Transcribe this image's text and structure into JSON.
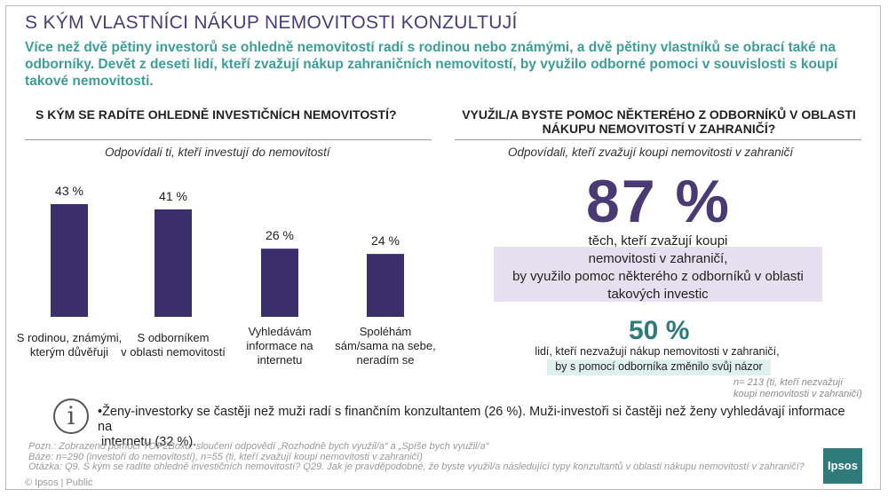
{
  "title": "S KÝM VLASTNÍCI NÁKUP NEMOVITOSTI KONZULTUJÍ",
  "intro": "Více než dvě pětiny investorů se ohledně nemovitostí radí s rodinou nebo známými, a dvě pětiny vlastníků se obrací také na odborníky. Devět z deseti lidí, kteří zvažují nákup zahraničních nemovitostí, by využilo odborné pomoci v souvislosti s koupí takové nemovitosti.",
  "left_title": "S KÝM SE RADÍTE OHLEDNĚ INVESTIČNÍCH NEMOVITOSTÍ?",
  "left_sub": "Odpovídali ti, kteří investují do nemovitostí",
  "right_title_1": "VYUŽIL/A BYSTE POMOC NĚKTERÉHO Z ODBORNÍKŮ V OBLASTI",
  "right_title_2": "NÁKUPU NEMOVITOSTÍ V ZAHRANIČÍ?",
  "right_sub": "Odpovídali, kteří zvažují koupi nemovitosti v zahraničí",
  "stat87": {
    "value": "87 %",
    "line1": "těch, kteří zvažují koupi",
    "line2": "nemovitosti v zahraničí,",
    "line3": "by využilo pomoc některého z odborníků v oblasti",
    "line4": "takových investic"
  },
  "stat50": {
    "value": "50 %",
    "line1": "lidí, kteří nezvažují nákup nemovitosti v zahraničí,",
    "line2": "by s pomocí odborníka změnilo svůj názor"
  },
  "n_right_1": "n= 213 (ti, kteří nezvažují",
  "n_right_2": "koupi nemovitosti v zahraničí)",
  "finding_1": "•Ženy-investorky se častěji než muži radí s finančním konzultantem (26 %). Muži-investoři si častěji než ženy vyhledávají informace na",
  "finding_2": "internetu (32 %).",
  "notes": [
    "Pozn.: Zobrazeno pomocí TOP2Boxu: sloučení odpovědí „Rozhodně bych využil/a“ a „Spíše bych využil/a“",
    "Báze: n=290 (investoři do nemovitostí), n=55 (ti, kteří zvažují koupi nemovitosti v zahraničí)",
    "Otázka: Q9. S kým se radíte ohledně investičních nemovitostí? Q29. Jak je pravděpodobné, že byste využil/a následující typy konzultantů v oblasti nákupu nemovitostí v zahraničí?"
  ],
  "footer": "© Ipsos | Public",
  "logo": "Ipsos",
  "colors": {
    "bar": "#3b2f6b",
    "title": "#4a3d78",
    "intro": "#3c9e98",
    "stat87": "#4a3a73",
    "stat50": "#2f7a7a"
  },
  "chart_data": {
    "type": "bar",
    "title": "S KÝM SE RADÍTE OHLEDNĚ INVESTIČNÍCH NEMOVITOSTÍ?",
    "categories": [
      [
        "S rodinou, známými,",
        "kterým důvěřuji"
      ],
      [
        "S odborníkem",
        "v oblasti nemovitostí"
      ],
      [
        "Vyhledávám",
        "informace na",
        "internetu"
      ],
      [
        "Spoléhám",
        "sám/sama na sebe,",
        "neradím se"
      ]
    ],
    "values": [
      43,
      41,
      26,
      24
    ],
    "value_labels": [
      "43 %",
      "41 %",
      "26 %",
      "24 %"
    ],
    "unit": "%",
    "ylim": [
      0,
      43
    ],
    "grid": false,
    "legend": "none"
  }
}
